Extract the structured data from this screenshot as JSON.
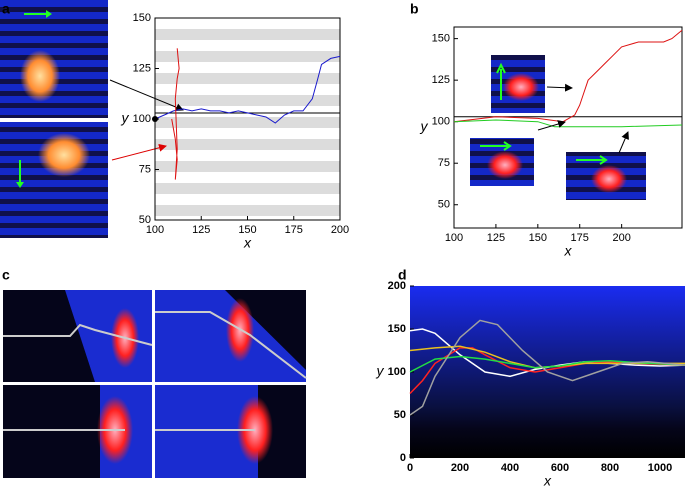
{
  "panel_labels": [
    "a",
    "b",
    "c",
    "d"
  ],
  "chart_data": [
    {
      "type": "line",
      "xlabel": "x",
      "ylabel": "y",
      "xlim": [
        100,
        200
      ],
      "ylim": [
        50,
        150
      ],
      "xticks": [
        100,
        125,
        150,
        175,
        200
      ],
      "yticks": [
        50,
        75,
        100,
        125,
        150
      ],
      "hline": 103,
      "series": [
        {
          "color": "#1a1acc",
          "x": [
            100,
            105,
            110,
            115,
            120,
            125,
            130,
            135,
            140,
            145,
            150,
            155,
            160,
            165,
            170,
            175,
            180,
            185,
            188,
            190,
            195,
            200
          ],
          "values": [
            100,
            102,
            104,
            105,
            104,
            105,
            104,
            104,
            103,
            104,
            103,
            102,
            101,
            98,
            102,
            104,
            104,
            110,
            120,
            127,
            130,
            131
          ]
        },
        {
          "color": "#dd1111",
          "x": [
            109,
            110,
            111,
            112,
            111,
            112,
            111,
            112,
            113,
            112
          ],
          "values": [
            100,
            95,
            90,
            80,
            70,
            85,
            110,
            120,
            125,
            135
          ]
        }
      ]
    },
    {
      "type": "line",
      "xlabel": "x",
      "ylabel": "y",
      "xlim": [
        100,
        236
      ],
      "ylim": [
        36,
        157
      ],
      "xticks": [
        100,
        125,
        150,
        175,
        200
      ],
      "yticks": [
        50,
        75,
        100,
        125,
        150
      ],
      "hline": 103,
      "series": [
        {
          "color": "#dd1111",
          "x": [
            100,
            125,
            150,
            165,
            172,
            175,
            180,
            185,
            190,
            195,
            200,
            210,
            225,
            230,
            236
          ],
          "values": [
            100,
            103,
            102,
            100,
            104,
            110,
            125,
            130,
            135,
            140,
            145,
            148,
            148,
            150,
            155
          ]
        },
        {
          "color": "#22cc22",
          "x": [
            100,
            125,
            150,
            160,
            175,
            200,
            236
          ],
          "values": [
            100,
            101,
            100,
            97,
            97,
            97,
            98
          ]
        }
      ]
    },
    {
      "type": "line",
      "xlabel": "x",
      "ylabel": "y",
      "xlim": [
        0,
        1100
      ],
      "ylim": [
        0,
        200
      ],
      "xticks": [
        0,
        200,
        400,
        600,
        800,
        1000
      ],
      "yticks": [
        0,
        50,
        100,
        150,
        200
      ],
      "series": [
        {
          "color": "#ffffff",
          "x": [
            0,
            50,
            100,
            200,
            300,
            400,
            500,
            600,
            700,
            800,
            900,
            1000,
            1100
          ],
          "values": [
            148,
            150,
            145,
            120,
            100,
            95,
            103,
            108,
            112,
            110,
            108,
            107,
            108
          ]
        },
        {
          "color": "#ff2222",
          "x": [
            0,
            50,
            100,
            200,
            250,
            300,
            400,
            500,
            600,
            700,
            800,
            900,
            1100
          ],
          "values": [
            75,
            90,
            110,
            128,
            128,
            120,
            105,
            100,
            105,
            110,
            112,
            110,
            108
          ]
        },
        {
          "color": "#e8c020",
          "x": [
            0,
            100,
            200,
            300,
            400,
            500,
            600,
            700,
            800,
            900,
            1100
          ],
          "values": [
            125,
            128,
            130,
            123,
            112,
            105,
            107,
            110,
            110,
            110,
            110
          ]
        },
        {
          "color": "#22dd44",
          "x": [
            0,
            100,
            200,
            300,
            400,
            500,
            600,
            700,
            800,
            900,
            1100
          ],
          "values": [
            100,
            115,
            118,
            115,
            110,
            105,
            107,
            112,
            113,
            111,
            108
          ]
        },
        {
          "color": "#a0a0a0",
          "x": [
            0,
            50,
            100,
            200,
            280,
            350,
            450,
            550,
            650,
            750,
            850,
            950,
            1100
          ],
          "values": [
            50,
            60,
            95,
            140,
            160,
            155,
            125,
            100,
            90,
            100,
            110,
            112,
            108
          ]
        }
      ]
    }
  ]
}
